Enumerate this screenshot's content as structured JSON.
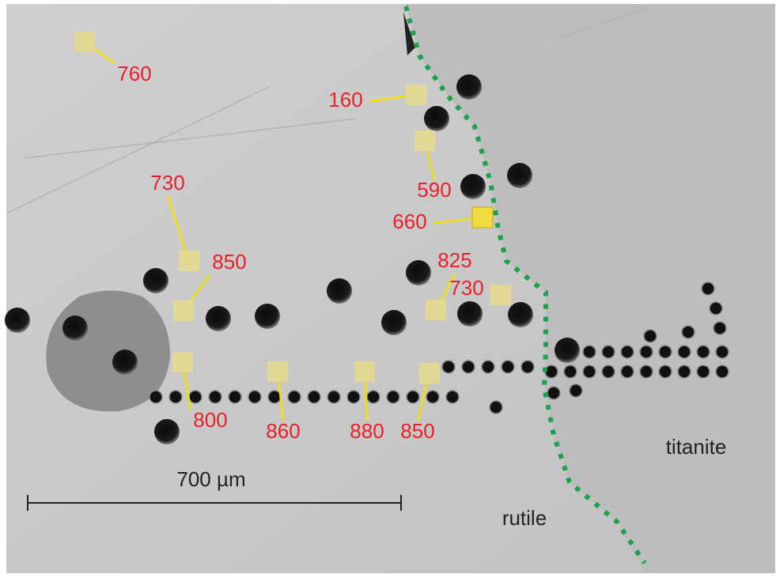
{
  "annotations": [
    {
      "label": "760"
    },
    {
      "label": "160"
    },
    {
      "label": "590"
    },
    {
      "label": "660"
    },
    {
      "label": "730"
    },
    {
      "label": "850"
    },
    {
      "label": "825"
    },
    {
      "label": "730"
    },
    {
      "label": "800"
    },
    {
      "label": "860"
    },
    {
      "label": "880"
    },
    {
      "label": "850"
    }
  ],
  "scale_bar": {
    "label": "700 µm"
  },
  "regions": [
    {
      "label": "rutile"
    },
    {
      "label": "titanite"
    }
  ]
}
